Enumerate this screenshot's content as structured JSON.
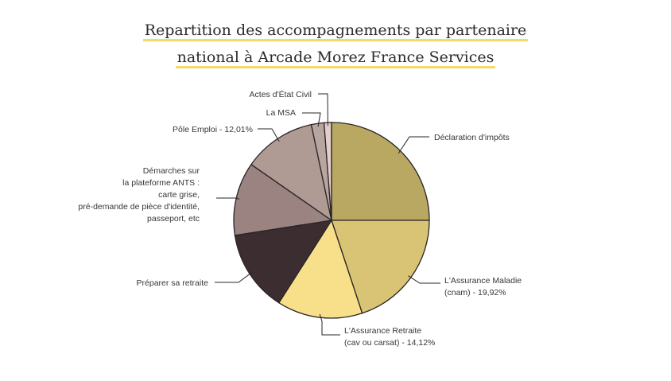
{
  "title_lines": [
    "Repartition des accompagnements par partenaire",
    "national à Arcade Morez France Services"
  ],
  "chart_data": {
    "type": "pie",
    "title": "Repartition des accompagnements par partenaire national à Arcade Morez France Services",
    "slices": [
      {
        "label_lines": [
          "Déclaration d'impôts"
        ],
        "value": 25.0,
        "color": "#b8a862"
      },
      {
        "label_lines": [
          "L'Assurance Maladie",
          "(cnam) - 19,92%"
        ],
        "value": 19.92,
        "color": "#d8c474"
      },
      {
        "label_lines": [
          "L'Assurance Retraite",
          "(cav ou carsat) - 14,12%"
        ],
        "value": 14.12,
        "color": "#f8e08a"
      },
      {
        "label_lines": [
          "Préparer sa retraite"
        ],
        "value": 13.5,
        "color": "#3c2d30"
      },
      {
        "label_lines": [
          "Démarches sur",
          "la plateforme ANTS :",
          "carte grise,",
          "pré-demande de pièce d'identité,",
          "passeport, etc"
        ],
        "value": 12.13,
        "color": "#9a8380"
      },
      {
        "label_lines": [
          "Pôle Emploi - 12,01%"
        ],
        "value": 12.01,
        "color": "#b09a94"
      },
      {
        "label_lines": [
          "La MSA"
        ],
        "value": 2.1,
        "color": "#b9a5a0"
      },
      {
        "label_lines": [
          "Actes d'État Civil"
        ],
        "value": 1.22,
        "color": "#e3cdca"
      }
    ]
  }
}
